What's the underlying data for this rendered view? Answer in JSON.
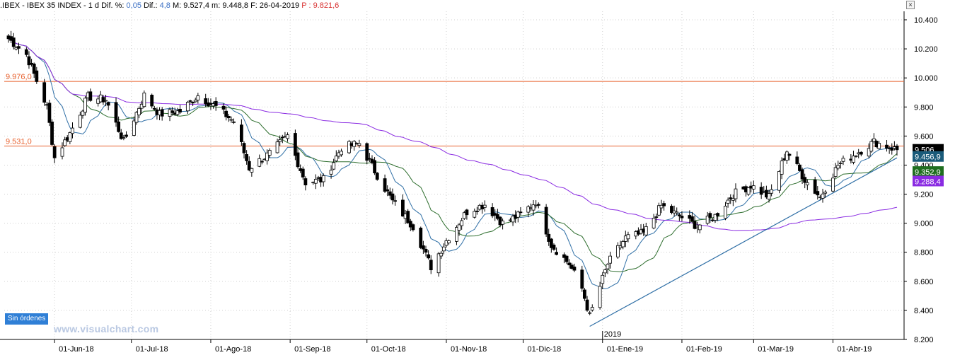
{
  "header": {
    "symbol": ".IBEX - IBEX 35 INDEX - ",
    "interval": "1 d",
    "dif_pct_label": " Dif. %: ",
    "dif_pct_value": "0,05",
    "dif_label": " Dif.: ",
    "dif_value": "4,8",
    "max_label": " M: ",
    "max_value": "9.527,4",
    "min_label": " m: ",
    "min_value": "9.448,8",
    "date_label": " F: ",
    "date_value": "26-04-2019",
    "p_label": " P : ",
    "p_value": "9.821,6",
    "close_symbol": "×"
  },
  "orders_button": "Sin órdenes",
  "watermark": "www.visualchart.com",
  "colors": {
    "up_candle": "#ffffff",
    "down_candle": "#000000",
    "ma_short": "#2f6fa6",
    "ma_mid": "#2e6e2e",
    "ma_long": "#8a2be2",
    "hline": "#e8602c",
    "trendline": "#2f6fa6",
    "grid": "#d0d0d0"
  },
  "chart_data": {
    "type": "candlestick",
    "title": "",
    "ylim": [
      8200,
      10400
    ],
    "yticks": [
      "8.200",
      "8.400",
      "8.600",
      "8.800",
      "9.000",
      "9.200",
      "9.400",
      "9.600",
      "9.800",
      "10.000",
      "10.200",
      "10.400"
    ],
    "ytick_values": [
      8200,
      8400,
      8600,
      8800,
      9000,
      9200,
      9400,
      9600,
      9800,
      10000,
      10200,
      10400
    ],
    "x_start": "2018-05-14",
    "x_end": "2019-04-26",
    "xticks": [
      {
        "date": "2018-06-01",
        "label": "01-Jun-18"
      },
      {
        "date": "2018-07-01",
        "label": "01-Jul-18"
      },
      {
        "date": "2018-08-01",
        "label": "01-Ago-18"
      },
      {
        "date": "2018-09-01",
        "label": "01-Sep-18"
      },
      {
        "date": "2018-10-01",
        "label": "01-Oct-18"
      },
      {
        "date": "2018-11-01",
        "label": "01-Nov-18"
      },
      {
        "date": "2018-12-01",
        "label": "01-Dic-18"
      },
      {
        "date": "2019-01-01",
        "label": "01-Ene-19"
      },
      {
        "date": "2019-02-01",
        "label": "01-Feb-19"
      },
      {
        "date": "2019-03-01",
        "label": "01-Mar-19"
      },
      {
        "date": "2019-04-01",
        "label": "01-Abr-19"
      }
    ],
    "year_marker": {
      "date": "2019-01-01",
      "label": "2019"
    },
    "grid": true,
    "horizontal_lines": [
      {
        "value": 9976.0,
        "label": "9.976,0"
      },
      {
        "value": 9531.0,
        "label": "9.531,0"
      }
    ],
    "trendline": {
      "from": {
        "date": "2018-12-27",
        "value": 8290
      },
      "to": {
        "date": "2019-04-26",
        "value": 9450
      }
    },
    "price_tags": [
      {
        "label": "9.506",
        "value": 9506,
        "color": "#000000"
      },
      {
        "label": "9.456,9",
        "value": 9457,
        "color": "#1a5b7a"
      },
      {
        "label": "9.352,9",
        "value": 9353,
        "color": "#1f6e1f"
      },
      {
        "label": "9.288,4",
        "value": 9288,
        "color": "#8a2be2"
      }
    ],
    "price_anchors": [
      [
        "2018-05-14",
        10270
      ],
      [
        "2018-05-21",
        10160
      ],
      [
        "2018-05-29",
        9800
      ],
      [
        "2018-06-01",
        9450
      ],
      [
        "2018-06-07",
        9620
      ],
      [
        "2018-06-14",
        9870
      ],
      [
        "2018-06-21",
        9850
      ],
      [
        "2018-06-28",
        9560
      ],
      [
        "2018-07-06",
        9880
      ],
      [
        "2018-07-12",
        9750
      ],
      [
        "2018-07-20",
        9770
      ],
      [
        "2018-07-27",
        9880
      ],
      [
        "2018-08-03",
        9800
      ],
      [
        "2018-08-10",
        9700
      ],
      [
        "2018-08-16",
        9380
      ],
      [
        "2018-08-24",
        9480
      ],
      [
        "2018-08-31",
        9600
      ],
      [
        "2018-09-07",
        9280
      ],
      [
        "2018-09-14",
        9300
      ],
      [
        "2018-09-21",
        9520
      ],
      [
        "2018-09-28",
        9550
      ],
      [
        "2018-10-04",
        9360
      ],
      [
        "2018-10-11",
        9150
      ],
      [
        "2018-10-19",
        8980
      ],
      [
        "2018-10-26",
        8700
      ],
      [
        "2018-11-01",
        8880
      ],
      [
        "2018-11-09",
        9080
      ],
      [
        "2018-11-16",
        9130
      ],
      [
        "2018-11-23",
        9000
      ],
      [
        "2018-11-30",
        9060
      ],
      [
        "2018-12-06",
        9150
      ],
      [
        "2018-12-12",
        8850
      ],
      [
        "2018-12-19",
        8720
      ],
      [
        "2018-12-24",
        8550
      ],
      [
        "2018-12-27",
        8360
      ],
      [
        "2019-01-03",
        8720
      ],
      [
        "2019-01-10",
        8900
      ],
      [
        "2019-01-17",
        8930
      ],
      [
        "2019-01-24",
        9120
      ],
      [
        "2019-01-31",
        9050
      ],
      [
        "2019-02-07",
        8980
      ],
      [
        "2019-02-14",
        9050
      ],
      [
        "2019-02-21",
        9200
      ],
      [
        "2019-02-28",
        9260
      ],
      [
        "2019-03-07",
        9180
      ],
      [
        "2019-03-14",
        9500
      ],
      [
        "2019-03-21",
        9300
      ],
      [
        "2019-03-27",
        9180
      ],
      [
        "2019-04-03",
        9400
      ],
      [
        "2019-04-10",
        9480
      ],
      [
        "2019-04-17",
        9560
      ],
      [
        "2019-04-26",
        9506
      ]
    ]
  }
}
